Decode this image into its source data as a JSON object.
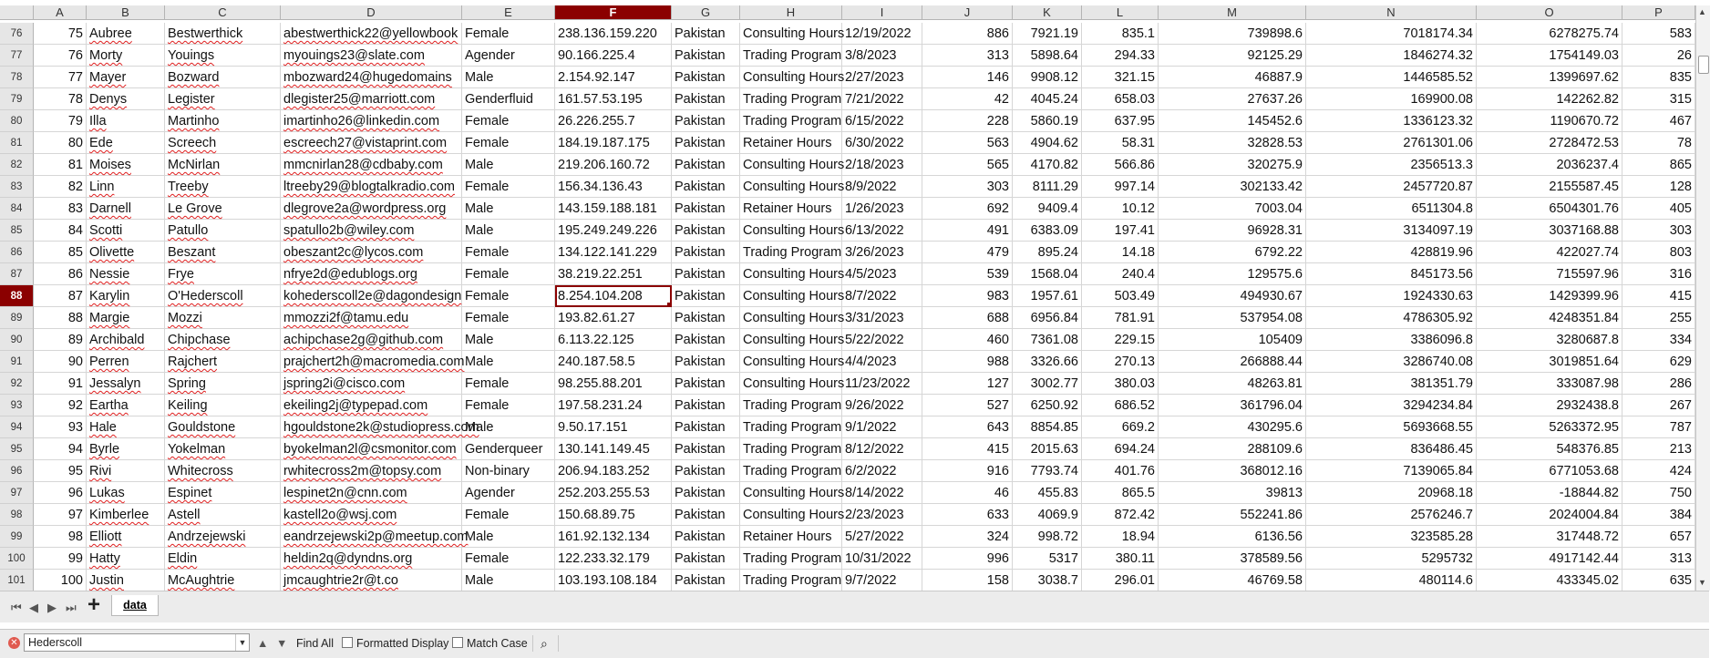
{
  "columns": [
    "A",
    "B",
    "C",
    "D",
    "E",
    "F",
    "G",
    "H",
    "I",
    "J",
    "K",
    "L",
    "M",
    "N",
    "O",
    "P"
  ],
  "selected_column": "F",
  "selected_row": "88",
  "rows": [
    {
      "rn": "76",
      "c": [
        "75",
        "Aubree",
        "Bestwerthick",
        "abestwerthick22@yellowbook",
        "Female",
        "238.136.159.220",
        "Pakistan",
        "Consulting Hours",
        "12/19/2022",
        "886",
        "7921.19",
        "835.1",
        "739898.6",
        "7018174.34",
        "6278275.74",
        "583"
      ]
    },
    {
      "rn": "77",
      "c": [
        "76",
        "Morty",
        "Youings",
        "myouings23@slate.com",
        "Agender",
        "90.166.225.4",
        "Pakistan",
        "Trading Program",
        "3/8/2023",
        "313",
        "5898.64",
        "294.33",
        "92125.29",
        "1846274.32",
        "1754149.03",
        "26"
      ]
    },
    {
      "rn": "78",
      "c": [
        "77",
        "Mayer",
        "Bozward",
        "mbozward24@hugedomains",
        "Male",
        "2.154.92.147",
        "Pakistan",
        "Consulting Hours",
        "2/27/2023",
        "146",
        "9908.12",
        "321.15",
        "46887.9",
        "1446585.52",
        "1399697.62",
        "835"
      ]
    },
    {
      "rn": "79",
      "c": [
        "78",
        "Denys",
        "Legister",
        "dlegister25@marriott.com",
        "Genderfluid",
        "161.57.53.195",
        "Pakistan",
        "Trading Program",
        "7/21/2022",
        "42",
        "4045.24",
        "658.03",
        "27637.26",
        "169900.08",
        "142262.82",
        "315"
      ]
    },
    {
      "rn": "80",
      "c": [
        "79",
        "Illa",
        "Martinho",
        "imartinho26@linkedin.com",
        "Female",
        "26.226.255.7",
        "Pakistan",
        "Trading Program",
        "6/15/2022",
        "228",
        "5860.19",
        "637.95",
        "145452.6",
        "1336123.32",
        "1190670.72",
        "467"
      ]
    },
    {
      "rn": "81",
      "c": [
        "80",
        "Ede",
        "Screech",
        "escreech27@vistaprint.com",
        "Female",
        "184.19.187.175",
        "Pakistan",
        "Retainer Hours",
        "6/30/2022",
        "563",
        "4904.62",
        "58.31",
        "32828.53",
        "2761301.06",
        "2728472.53",
        "78"
      ]
    },
    {
      "rn": "82",
      "c": [
        "81",
        "Moises",
        "McNirlan",
        "mmcnirlan28@cdbaby.com",
        "Male",
        "219.206.160.72",
        "Pakistan",
        "Consulting Hours",
        "2/18/2023",
        "565",
        "4170.82",
        "566.86",
        "320275.9",
        "2356513.3",
        "2036237.4",
        "865"
      ]
    },
    {
      "rn": "83",
      "c": [
        "82",
        "Linn",
        "Treeby",
        "ltreeby29@blogtalkradio.com",
        "Female",
        "156.34.136.43",
        "Pakistan",
        "Consulting Hours",
        "8/9/2022",
        "303",
        "8111.29",
        "997.14",
        "302133.42",
        "2457720.87",
        "2155587.45",
        "128"
      ]
    },
    {
      "rn": "84",
      "c": [
        "83",
        "Darnell",
        "Le Grove",
        "dlegrove2a@wordpress.org",
        "Male",
        "143.159.188.181",
        "Pakistan",
        "Retainer Hours",
        "1/26/2023",
        "692",
        "9409.4",
        "10.12",
        "7003.04",
        "6511304.8",
        "6504301.76",
        "405"
      ]
    },
    {
      "rn": "85",
      "c": [
        "84",
        "Scotti",
        "Patullo",
        "spatullo2b@wiley.com",
        "Male",
        "195.249.249.226",
        "Pakistan",
        "Consulting Hours",
        "6/13/2022",
        "491",
        "6383.09",
        "197.41",
        "96928.31",
        "3134097.19",
        "3037168.88",
        "303"
      ]
    },
    {
      "rn": "86",
      "c": [
        "85",
        "Olivette",
        "Beszant",
        "obeszant2c@lycos.com",
        "Female",
        "134.122.141.229",
        "Pakistan",
        "Trading Program",
        "3/26/2023",
        "479",
        "895.24",
        "14.18",
        "6792.22",
        "428819.96",
        "422027.74",
        "803"
      ]
    },
    {
      "rn": "87",
      "c": [
        "86",
        "Nessie",
        "Frye",
        "nfrye2d@edublogs.org",
        "Female",
        "38.219.22.251",
        "Pakistan",
        "Consulting Hours",
        "4/5/2023",
        "539",
        "1568.04",
        "240.4",
        "129575.6",
        "845173.56",
        "715597.96",
        "316"
      ]
    },
    {
      "rn": "88",
      "c": [
        "87",
        "Karylin",
        "O'Hederscoll",
        "kohederscoll2e@dagondesign",
        "Female",
        "8.254.104.208",
        "Pakistan",
        "Consulting Hours",
        "8/7/2022",
        "983",
        "1957.61",
        "503.49",
        "494930.67",
        "1924330.63",
        "1429399.96",
        "415"
      ]
    },
    {
      "rn": "89",
      "c": [
        "88",
        "Margie",
        "Mozzi",
        "mmozzi2f@tamu.edu",
        "Female",
        "193.82.61.27",
        "Pakistan",
        "Consulting Hours",
        "3/31/2023",
        "688",
        "6956.84",
        "781.91",
        "537954.08",
        "4786305.92",
        "4248351.84",
        "255"
      ]
    },
    {
      "rn": "90",
      "c": [
        "89",
        "Archibald",
        "Chipchase",
        "achipchase2g@github.com",
        "Male",
        "6.113.22.125",
        "Pakistan",
        "Consulting Hours",
        "5/22/2022",
        "460",
        "7361.08",
        "229.15",
        "105409",
        "3386096.8",
        "3280687.8",
        "334"
      ]
    },
    {
      "rn": "91",
      "c": [
        "90",
        "Perren",
        "Rajchert",
        "prajchert2h@macromedia.com",
        "Male",
        "240.187.58.5",
        "Pakistan",
        "Consulting Hours",
        "4/4/2023",
        "988",
        "3326.66",
        "270.13",
        "266888.44",
        "3286740.08",
        "3019851.64",
        "629"
      ]
    },
    {
      "rn": "92",
      "c": [
        "91",
        "Jessalyn",
        "Spring",
        "jspring2i@cisco.com",
        "Female",
        "98.255.88.201",
        "Pakistan",
        "Consulting Hours",
        "11/23/2022",
        "127",
        "3002.77",
        "380.03",
        "48263.81",
        "381351.79",
        "333087.98",
        "286"
      ]
    },
    {
      "rn": "93",
      "c": [
        "92",
        "Eartha",
        "Keiling",
        "ekeiling2j@typepad.com",
        "Female",
        "197.58.231.24",
        "Pakistan",
        "Trading Program",
        "9/26/2022",
        "527",
        "6250.92",
        "686.52",
        "361796.04",
        "3294234.84",
        "2932438.8",
        "267"
      ]
    },
    {
      "rn": "94",
      "c": [
        "93",
        "Hale",
        "Gouldstone",
        "hgouldstone2k@studiopress.com",
        "Male",
        "9.50.17.151",
        "Pakistan",
        "Trading Program",
        "9/1/2022",
        "643",
        "8854.85",
        "669.2",
        "430295.6",
        "5693668.55",
        "5263372.95",
        "787"
      ]
    },
    {
      "rn": "95",
      "c": [
        "94",
        "Byrle",
        "Yokelman",
        "byokelman2l@csmonitor.com",
        "Genderqueer",
        "130.141.149.45",
        "Pakistan",
        "Trading Program",
        "8/12/2022",
        "415",
        "2015.63",
        "694.24",
        "288109.6",
        "836486.45",
        "548376.85",
        "213"
      ]
    },
    {
      "rn": "96",
      "c": [
        "95",
        "Rivi",
        "Whitecross",
        "rwhitecross2m@topsy.com",
        "Non-binary",
        "206.94.183.252",
        "Pakistan",
        "Trading Program",
        "6/2/2022",
        "916",
        "7793.74",
        "401.76",
        "368012.16",
        "7139065.84",
        "6771053.68",
        "424"
      ]
    },
    {
      "rn": "97",
      "c": [
        "96",
        "Lukas",
        "Espinet",
        "lespinet2n@cnn.com",
        "Agender",
        "252.203.255.53",
        "Pakistan",
        "Consulting Hours",
        "8/14/2022",
        "46",
        "455.83",
        "865.5",
        "39813",
        "20968.18",
        "-18844.82",
        "750"
      ]
    },
    {
      "rn": "98",
      "c": [
        "97",
        "Kimberlee",
        "Astell",
        "kastell2o@wsj.com",
        "Female",
        "150.68.89.75",
        "Pakistan",
        "Consulting Hours",
        "2/23/2023",
        "633",
        "4069.9",
        "872.42",
        "552241.86",
        "2576246.7",
        "2024004.84",
        "384"
      ]
    },
    {
      "rn": "99",
      "c": [
        "98",
        "Elliott",
        "Andrzejewski",
        "eandrzejewski2p@meetup.com",
        "Male",
        "161.92.132.134",
        "Pakistan",
        "Retainer Hours",
        "5/27/2022",
        "324",
        "998.72",
        "18.94",
        "6136.56",
        "323585.28",
        "317448.72",
        "657"
      ]
    },
    {
      "rn": "100",
      "c": [
        "99",
        "Hatty",
        "Eldin",
        "heldin2q@dyndns.org",
        "Female",
        "122.233.32.179",
        "Pakistan",
        "Trading Program",
        "10/31/2022",
        "996",
        "5317",
        "380.11",
        "378589.56",
        "5295732",
        "4917142.44",
        "313"
      ]
    },
    {
      "rn": "101",
      "c": [
        "100",
        "Justin",
        "McAughtrie",
        "jmcaughtrie2r@t.co",
        "Male",
        "103.193.108.184",
        "Pakistan",
        "Trading Program",
        "9/7/2022",
        "158",
        "3038.7",
        "296.01",
        "46769.58",
        "480114.6",
        "433345.02",
        "635"
      ]
    }
  ],
  "sheet_tab": "data",
  "find": {
    "value": "Hederscoll",
    "find_all": "Find All",
    "formatted_display": "Formatted Display",
    "match_case": "Match Case"
  }
}
